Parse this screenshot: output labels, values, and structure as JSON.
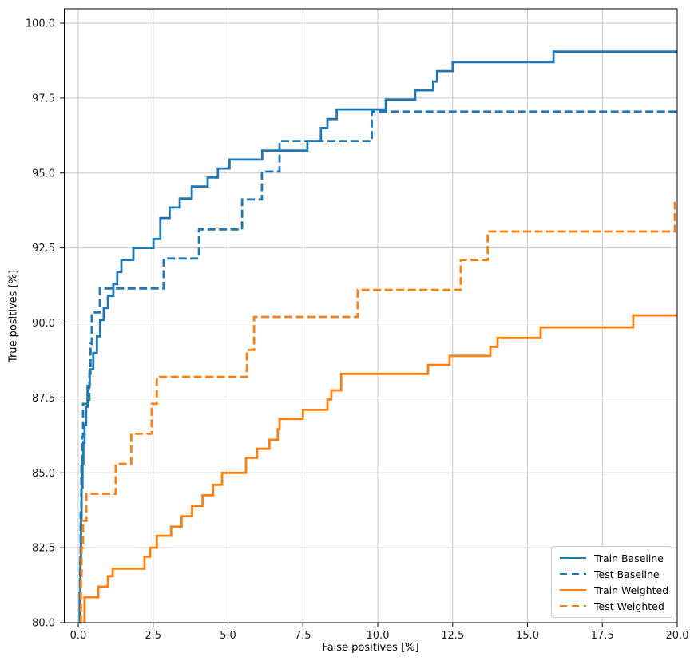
{
  "figure": {
    "background": "#ffffff",
    "grid_color": "#c9c9c9",
    "spine_color": "#000000",
    "tick_label_color": "#1a1a1a"
  },
  "axes": {
    "xlabel": "False positives [%]",
    "ylabel": "True positives [%]",
    "x_tick_labels": [
      "0.0",
      "2.5",
      "5.0",
      "7.5",
      "10.0",
      "12.5",
      "15.0",
      "17.5",
      "20.0"
    ],
    "x_tick_values": [
      0,
      2.5,
      5,
      7.5,
      10,
      12.5,
      15,
      17.5,
      20
    ],
    "y_tick_labels": [
      "80.0",
      "82.5",
      "85.0",
      "87.5",
      "90.0",
      "92.5",
      "95.0",
      "97.5",
      "100.0"
    ],
    "y_tick_values": [
      80,
      82.5,
      85,
      87.5,
      90,
      92.5,
      95,
      97.5,
      100
    ],
    "grid": true
  },
  "legend": {
    "position": "lower right",
    "entries": [
      {
        "label": "Train Baseline",
        "color": "#1f77b4",
        "style": "solid"
      },
      {
        "label": "Test Baseline",
        "color": "#1f77b4",
        "style": "dashed"
      },
      {
        "label": "Train Weighted",
        "color": "#ff7f0e",
        "style": "solid"
      },
      {
        "label": "Test Weighted",
        "color": "#ff7f0e",
        "style": "dashed"
      }
    ]
  },
  "chart_data": {
    "type": "line",
    "subtype": "roc-step-curves",
    "title": "",
    "xlabel": "False positives [%]",
    "ylabel": "True positives [%]",
    "xlim": [
      -0.48,
      20
    ],
    "ylim": [
      80,
      100.5
    ],
    "x_range": [
      0,
      20
    ],
    "y_range": [
      80,
      100
    ],
    "series": [
      {
        "name": "Train Baseline",
        "color": "#1f77b4",
        "style": "solid",
        "start": [
          0.04,
          80
        ],
        "steps": [
          [
            0.05,
            81.0
          ],
          [
            0.07,
            82.2
          ],
          [
            0.09,
            83.4
          ],
          [
            0.11,
            84.5
          ],
          [
            0.14,
            85.3
          ],
          [
            0.17,
            86.0
          ],
          [
            0.21,
            86.6
          ],
          [
            0.26,
            87.2
          ],
          [
            0.31,
            87.9
          ],
          [
            0.38,
            88.45
          ],
          [
            0.5,
            89.0
          ],
          [
            0.62,
            89.55
          ],
          [
            0.73,
            90.1
          ],
          [
            0.85,
            90.5
          ],
          [
            0.99,
            90.9
          ],
          [
            1.17,
            91.3
          ],
          [
            1.3,
            91.7
          ],
          [
            1.44,
            92.1
          ],
          [
            1.84,
            92.5
          ],
          [
            2.51,
            92.8
          ],
          [
            2.74,
            93.5
          ],
          [
            3.05,
            93.85
          ],
          [
            3.39,
            94.15
          ],
          [
            3.79,
            94.55
          ],
          [
            4.32,
            94.85
          ],
          [
            4.66,
            95.15
          ],
          [
            5.05,
            95.45
          ],
          [
            6.14,
            95.75
          ],
          [
            7.65,
            96.07
          ],
          [
            8.1,
            96.5
          ],
          [
            8.32,
            96.8
          ],
          [
            8.63,
            97.12
          ],
          [
            10.27,
            97.45
          ],
          [
            11.25,
            97.76
          ],
          [
            11.85,
            98.05
          ],
          [
            11.98,
            98.4
          ],
          [
            12.5,
            98.7
          ],
          [
            15.87,
            99.05
          ]
        ],
        "end_x": 20
      },
      {
        "name": "Test Baseline",
        "color": "#1f77b4",
        "style": "dashed",
        "start": [
          0.05,
          80
        ],
        "steps": [
          [
            0.06,
            82.0
          ],
          [
            0.08,
            83.8
          ],
          [
            0.1,
            85.2
          ],
          [
            0.12,
            86.2
          ],
          [
            0.16,
            87.3
          ],
          [
            0.37,
            88.3
          ],
          [
            0.41,
            89.3
          ],
          [
            0.45,
            90.35
          ],
          [
            0.72,
            91.15
          ],
          [
            2.85,
            92.15
          ],
          [
            4.03,
            93.12
          ],
          [
            5.47,
            94.12
          ],
          [
            6.13,
            95.05
          ],
          [
            6.72,
            96.07
          ],
          [
            9.8,
            97.05
          ]
        ],
        "end_x": 20
      },
      {
        "name": "Train Weighted",
        "color": "#ff7f0e",
        "style": "solid",
        "start": [
          0.21,
          80
        ],
        "steps": [
          [
            0.21,
            80.85
          ],
          [
            0.67,
            81.2
          ],
          [
            0.99,
            81.55
          ],
          [
            1.15,
            81.8
          ],
          [
            2.21,
            82.2
          ],
          [
            2.4,
            82.5
          ],
          [
            2.62,
            82.9
          ],
          [
            3.1,
            83.2
          ],
          [
            3.45,
            83.55
          ],
          [
            3.8,
            83.9
          ],
          [
            4.15,
            84.25
          ],
          [
            4.5,
            84.6
          ],
          [
            4.8,
            85.0
          ],
          [
            5.6,
            85.5
          ],
          [
            5.97,
            85.8
          ],
          [
            6.38,
            86.1
          ],
          [
            6.66,
            86.45
          ],
          [
            6.72,
            86.8
          ],
          [
            7.5,
            87.1
          ],
          [
            8.32,
            87.45
          ],
          [
            8.45,
            87.75
          ],
          [
            8.78,
            88.3
          ],
          [
            11.68,
            88.6
          ],
          [
            12.4,
            88.9
          ],
          [
            13.76,
            89.2
          ],
          [
            14.0,
            89.5
          ],
          [
            15.44,
            89.85
          ],
          [
            18.53,
            90.25
          ]
        ],
        "end_x": 20
      },
      {
        "name": "Test Weighted",
        "color": "#ff7f0e",
        "style": "dashed",
        "start": [
          0.08,
          80
        ],
        "steps": [
          [
            0.09,
            81.5
          ],
          [
            0.11,
            82.5
          ],
          [
            0.16,
            83.4
          ],
          [
            0.27,
            84.3
          ],
          [
            1.25,
            85.3
          ],
          [
            1.77,
            86.3
          ],
          [
            2.45,
            87.3
          ],
          [
            2.62,
            88.2
          ],
          [
            5.63,
            89.1
          ],
          [
            5.87,
            90.2
          ],
          [
            9.33,
            91.1
          ],
          [
            12.77,
            92.1
          ],
          [
            13.67,
            93.05
          ],
          [
            19.92,
            94.1
          ]
        ],
        "end_x": 20
      }
    ]
  }
}
